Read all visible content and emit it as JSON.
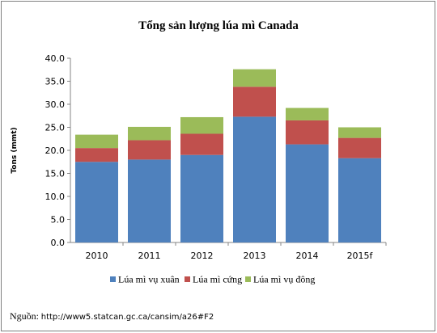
{
  "chart_data": {
    "type": "bar",
    "stacked": true,
    "title": "Tổng sản lượng lúa mì Canada",
    "ylabel": "Tons (mmt)",
    "xlabel": "",
    "categories": [
      "2010",
      "2011",
      "2012",
      "2013",
      "2014",
      "2015f"
    ],
    "series": [
      {
        "name": "Lúa mì vụ xuân",
        "color": "#4f81bd",
        "values": [
          17.5,
          18.0,
          19.0,
          27.3,
          21.3,
          18.3
        ]
      },
      {
        "name": "Lúa mì cứng",
        "color": "#c0504d",
        "values": [
          3.0,
          4.2,
          4.6,
          6.5,
          5.2,
          4.4
        ]
      },
      {
        "name": "Lúa mì vụ đông",
        "color": "#9bbb59",
        "values": [
          2.9,
          2.9,
          3.6,
          3.8,
          2.7,
          2.3
        ]
      }
    ],
    "ylim": [
      0,
      40
    ],
    "yticks": [
      "0.0",
      "5.0",
      "10.0",
      "15.0",
      "20.0",
      "25.0",
      "30.0",
      "35.0",
      "40.0"
    ],
    "grid": false,
    "legend": "bottom"
  },
  "source": {
    "label": "Nguồn:",
    "url": "http://www5.statcan.gc.ca/cansim/a26#F2"
  }
}
